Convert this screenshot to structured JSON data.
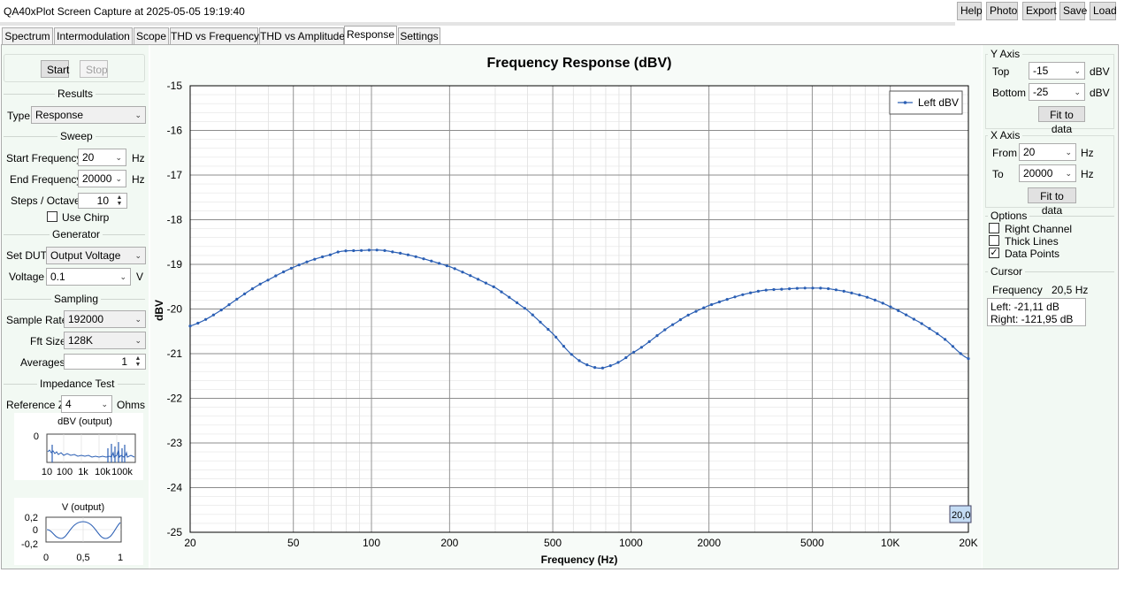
{
  "window": {
    "title": "QA40xPlot Screen Capture at 2025-05-05 19:19:40"
  },
  "toolbar": {
    "help": "Help",
    "photo": "Photo",
    "export": "Export",
    "save": "Save",
    "load": "Load"
  },
  "tabs": [
    "Spectrum",
    "Intermodulation",
    "Scope",
    "THD vs Frequency",
    "THD vs Amplitude",
    "Response",
    "Settings"
  ],
  "left": {
    "start": "Start",
    "stop": "Stop",
    "results": {
      "title": "Results",
      "type_label": "Type",
      "type_value": "Response"
    },
    "sweep": {
      "title": "Sweep",
      "start_label": "Start Frequency",
      "start_value": "20",
      "start_unit": "Hz",
      "end_label": "End Frequency",
      "end_value": "20000",
      "end_unit": "Hz",
      "steps_label": "Steps / Octave",
      "steps_value": "10",
      "chirp_label": "Use Chirp"
    },
    "generator": {
      "title": "Generator",
      "dut_label": "Set DUT",
      "dut_value": "Output Voltage",
      "voltage_label": "Voltage",
      "voltage_value": "0.1",
      "voltage_unit": "V"
    },
    "sampling": {
      "title": "Sampling",
      "rate_label": "Sample Rate",
      "rate_value": "192000",
      "fft_label": "Fft Size",
      "fft_value": "128K",
      "avg_label": "Averages",
      "avg_value": "1"
    },
    "impedance": {
      "title": "Impedance Test",
      "ref_label": "Reference Z",
      "ref_value": "4",
      "ref_unit": "Ohms"
    },
    "mini_spectrum": {
      "title": "dBV (output)",
      "y_tick": "0",
      "x_ticks": [
        "10",
        "100",
        "1k",
        "10k",
        "100k"
      ]
    },
    "mini_scope": {
      "title": "V (output)",
      "y_ticks": [
        "0,2",
        "0",
        "-0,2"
      ],
      "x_ticks": [
        "0",
        "0,5",
        "1"
      ]
    }
  },
  "right": {
    "yaxis": {
      "title": "Y Axis",
      "top_label": "Top",
      "top_value": "-15",
      "top_unit": "dBV",
      "bottom_label": "Bottom",
      "bottom_value": "-25",
      "bottom_unit": "dBV",
      "fit": "Fit to data"
    },
    "xaxis": {
      "title": "X Axis",
      "from_label": "From",
      "from_value": "20",
      "from_unit": "Hz",
      "to_label": "To",
      "to_value": "20000",
      "to_unit": "Hz",
      "fit": "Fit to data"
    },
    "options": {
      "title": "Options",
      "right_channel": "Right Channel",
      "thick_lines": "Thick Lines",
      "data_points": "Data Points"
    },
    "cursor": {
      "title": "Cursor",
      "freq_label": "Frequency",
      "freq_value": "20,5 Hz",
      "left": "Left: -21,11 dB",
      "right": "Right: -121,95 dB"
    }
  },
  "chart_data": {
    "type": "line",
    "title": "Frequency Response (dBV)",
    "xlabel": "Frequency (Hz)",
    "ylabel": "dBV",
    "x_scale": "log",
    "xlim": [
      20,
      20000
    ],
    "ylim": [
      -25,
      -15
    ],
    "x_ticks": [
      20,
      50,
      100,
      200,
      500,
      1000,
      2000,
      5000,
      10000,
      20000
    ],
    "x_tick_labels": [
      "20",
      "50",
      "100",
      "200",
      "500",
      "1000",
      "2000",
      "5000",
      "10K",
      "20K"
    ],
    "y_ticks": [
      -15,
      -16,
      -17,
      -18,
      -19,
      -20,
      -21,
      -22,
      -23,
      -24,
      -25
    ],
    "grid": true,
    "legend": "top-right",
    "cursor_label": "20,0",
    "series": [
      {
        "name": "Left dBV",
        "color": "#2b5fb4",
        "x": [
          20,
          40,
          70,
          90,
          120,
          200,
          300,
          400,
          500,
          600,
          700,
          800,
          1000,
          1500,
          2000,
          3000,
          4000,
          5000,
          6000,
          8000,
          10000,
          13000,
          16000,
          20000
        ],
        "y": [
          -20.38,
          -19.35,
          -18.78,
          -18.69,
          -18.72,
          -19.05,
          -19.52,
          -20.03,
          -20.55,
          -21.05,
          -21.28,
          -21.3,
          -21.0,
          -20.3,
          -19.92,
          -19.62,
          -19.55,
          -19.53,
          -19.56,
          -19.72,
          -19.95,
          -20.3,
          -20.65,
          -21.11
        ]
      }
    ]
  }
}
